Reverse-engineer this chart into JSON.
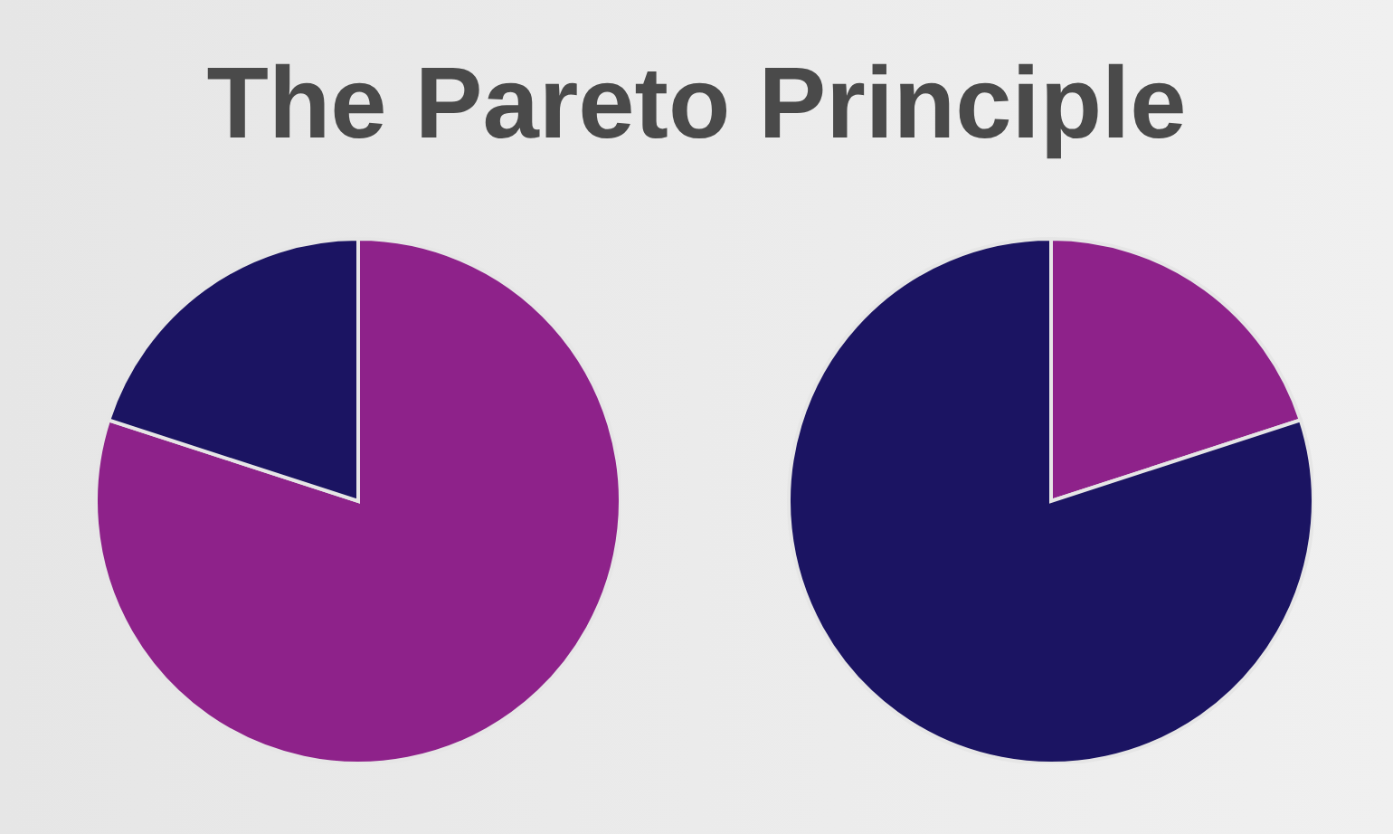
{
  "chart_data": [
    {
      "type": "pie",
      "title": "The Pareto Principle",
      "categories": [
        null,
        null
      ],
      "values": [
        80,
        20
      ],
      "colors": [
        "#8e228a",
        "#1b1462"
      ]
    },
    {
      "type": "pie",
      "categories": [
        null,
        null
      ],
      "values": [
        20,
        80
      ],
      "colors": [
        "#8e228a",
        "#1b1462"
      ]
    }
  ]
}
